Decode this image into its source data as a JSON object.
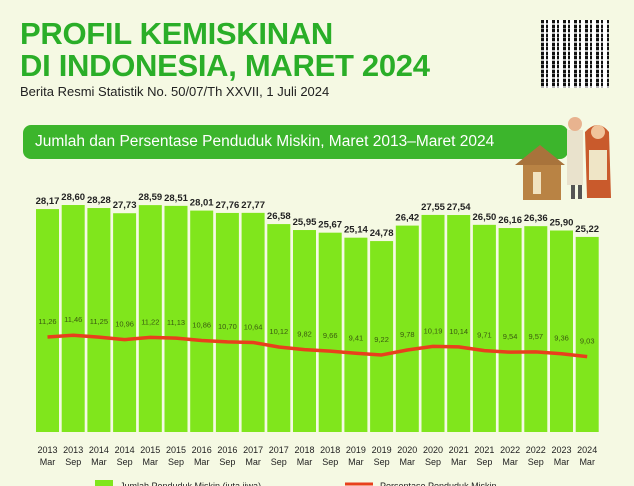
{
  "header": {
    "title_line1": "PROFIL KEMISKINAN",
    "title_line2": "DI INDONESIA, MARET 2024",
    "subtitle": "Berita Resmi Statistik No. 50/07/Th XXVII, 1 Juli 2024"
  },
  "colors": {
    "bar": "#80e61c",
    "line": "#e8401c",
    "title": "#2aae28",
    "banner": "#3cb52c"
  },
  "chart_data": {
    "type": "bar",
    "title": "Jumlah dan Persentase Penduduk Miskin, Maret 2013–Maret 2024",
    "categories": [
      [
        "2013",
        "Mar"
      ],
      [
        "2013",
        "Sep"
      ],
      [
        "2014",
        "Mar"
      ],
      [
        "2014",
        "Sep"
      ],
      [
        "2015",
        "Mar"
      ],
      [
        "2015",
        "Sep"
      ],
      [
        "2016",
        "Mar"
      ],
      [
        "2016",
        "Sep"
      ],
      [
        "2017",
        "Mar"
      ],
      [
        "2017",
        "Sep"
      ],
      [
        "2018",
        "Mar"
      ],
      [
        "2018",
        "Sep"
      ],
      [
        "2019",
        "Mar"
      ],
      [
        "2019",
        "Sep"
      ],
      [
        "2020",
        "Mar"
      ],
      [
        "2020",
        "Sep"
      ],
      [
        "2021",
        "Mar"
      ],
      [
        "2021",
        "Sep"
      ],
      [
        "2022",
        "Mar"
      ],
      [
        "2022",
        "Sep"
      ],
      [
        "2023",
        "Mar"
      ],
      [
        "2024",
        "Mar"
      ]
    ],
    "series": [
      {
        "name": "Jumlah Penduduk Miskin (juta jiwa)",
        "type": "bar",
        "values": [
          28.17,
          28.6,
          28.28,
          27.73,
          28.59,
          28.51,
          28.01,
          27.76,
          27.77,
          26.58,
          25.95,
          25.67,
          25.14,
          24.78,
          26.42,
          27.55,
          27.54,
          26.5,
          26.16,
          26.36,
          25.9,
          25.22
        ],
        "labels": [
          "28,17",
          "28,60",
          "28,28",
          "27,73",
          "28,59",
          "28,51",
          "28,01",
          "27,76",
          "27,77",
          "26,58",
          "25,95",
          "25,67",
          "25,14",
          "24,78",
          "26,42",
          "27,55",
          "27,54",
          "26,50",
          "26,16",
          "26,36",
          "25,90",
          "25,22"
        ]
      },
      {
        "name": "Persentase Penduduk Miskin",
        "type": "line",
        "values": [
          11.26,
          11.46,
          11.25,
          10.96,
          11.22,
          11.13,
          10.86,
          10.7,
          10.64,
          10.12,
          9.82,
          9.66,
          9.41,
          9.22,
          9.78,
          10.19,
          10.14,
          9.71,
          9.54,
          9.57,
          9.36,
          9.03
        ],
        "labels": [
          "11,26",
          "11,46",
          "11,25",
          "10,96",
          "11,22",
          "11,13",
          "10,86",
          "10,70",
          "10,64",
          "10,12",
          "9,82",
          "9,66",
          "9,41",
          "9,22",
          "9,78",
          "10,19",
          "10,14",
          "9,71",
          "9,54",
          "9,57",
          "9,36",
          "9,03"
        ]
      }
    ],
    "legend_position": "bottom"
  }
}
